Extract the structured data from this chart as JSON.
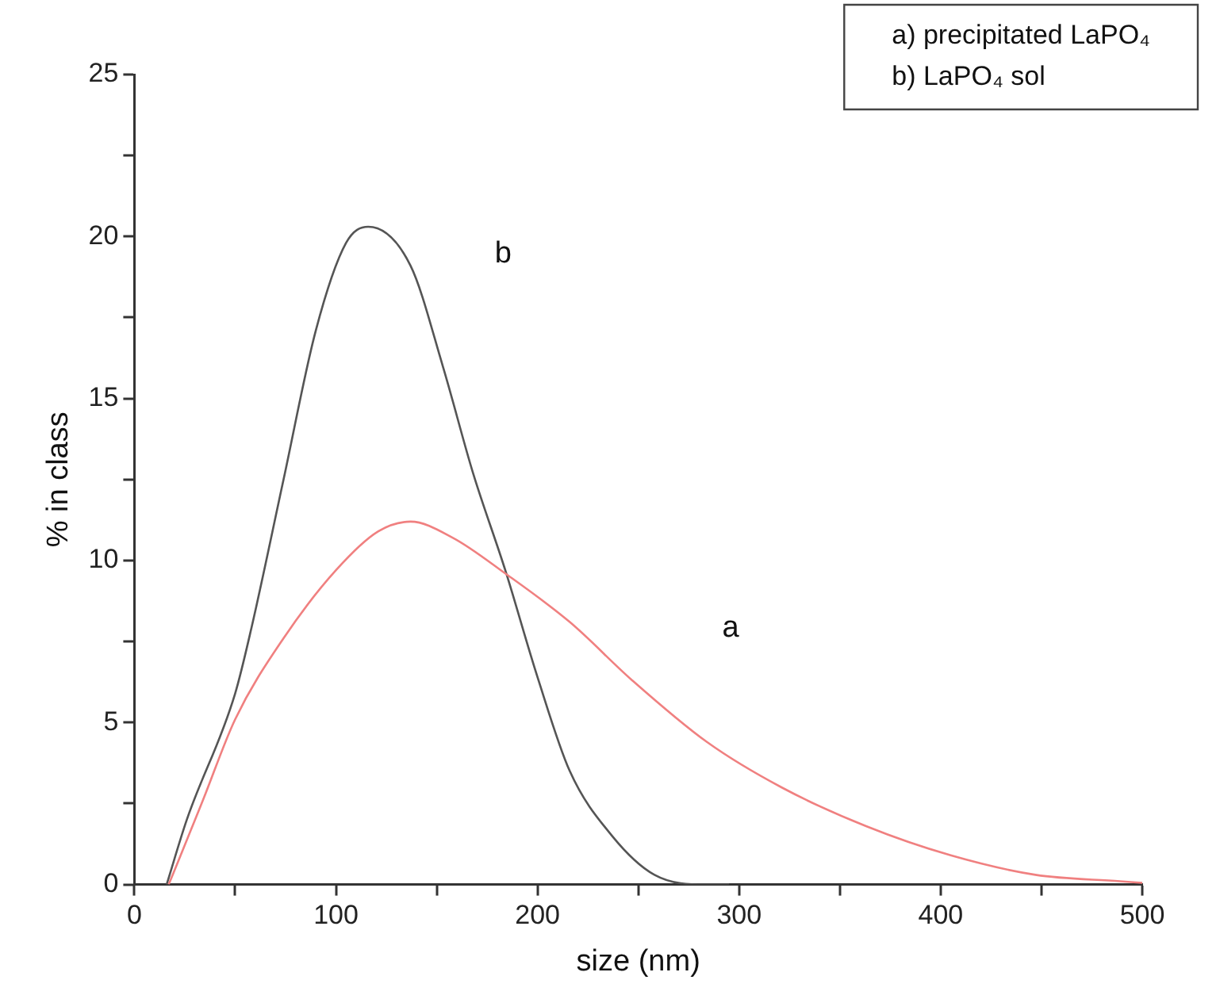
{
  "chart_data": {
    "type": "line",
    "xlabel": "size (nm)",
    "ylabel": "% in class",
    "xlim": [
      0,
      500
    ],
    "ylim": [
      0,
      25
    ],
    "xticks": [
      0,
      {
        "value": 50,
        "label": null
      },
      100,
      {
        "value": 150,
        "label": null
      },
      200,
      {
        "value": 250,
        "label": null
      },
      300,
      {
        "value": 350,
        "label": null
      },
      400,
      {
        "value": 450,
        "label": null
      },
      500
    ],
    "yticks": [
      0,
      {
        "value": 2.5,
        "label": null
      },
      5,
      {
        "value": 7.5,
        "label": null
      },
      10,
      {
        "value": 12.5,
        "label": null
      },
      15,
      {
        "value": 17.5,
        "label": null
      },
      20,
      {
        "value": 22.5,
        "label": null
      },
      25
    ],
    "grid": false,
    "legend": false,
    "marker": "none",
    "line_style": "solid",
    "series": [
      {
        "name": "a",
        "color": "#f08080",
        "x": [
          17,
          21,
          34,
          50,
          74,
          100,
          121,
          137,
          158,
          184,
          216,
          247,
          284,
          321,
          363,
          405,
          447,
          489,
          500
        ],
        "values": [
          0,
          0.6,
          2.6,
          5.1,
          7.6,
          9.7,
          10.9,
          11.2,
          10.7,
          9.6,
          8.1,
          6.3,
          4.4,
          3.0,
          1.8,
          0.9,
          0.3,
          0.1,
          0.05
        ]
      },
      {
        "name": "b",
        "color": "#555555",
        "x": [
          16,
          26,
          50,
          58,
          74,
          90,
          105,
          116,
          137,
          153,
          168,
          184,
          200,
          216,
          237,
          258,
          284,
          295
        ],
        "values": [
          0,
          2.0,
          5.9,
          7.9,
          12.5,
          17.1,
          19.8,
          20.3,
          19.1,
          16.0,
          12.7,
          9.7,
          6.4,
          3.5,
          1.5,
          0.3,
          0,
          0
        ]
      }
    ],
    "annotations": [
      "a) precipitated LaPO₄",
      "b) LaPO₄ sol"
    ]
  }
}
